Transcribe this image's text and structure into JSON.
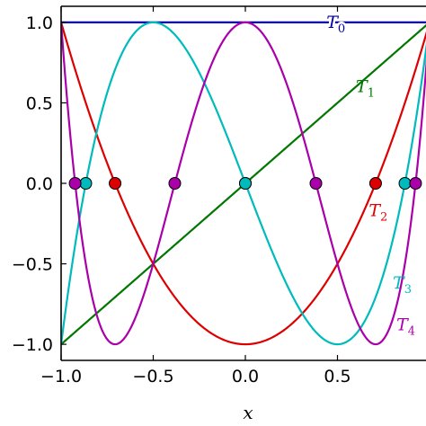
{
  "chart_data": {
    "type": "line",
    "xlabel": "x",
    "ylabel": "",
    "xlim": [
      -1.0,
      1.0
    ],
    "ylim": [
      -1.1,
      1.1
    ],
    "xticks": [
      {
        "value": -1.0,
        "label": "−1.0"
      },
      {
        "value": -0.5,
        "label": "−0.5"
      },
      {
        "value": 0.0,
        "label": "0.0"
      },
      {
        "value": 0.5,
        "label": "0.5"
      }
    ],
    "yticks": [
      {
        "value": 1.0,
        "label": "1.0"
      },
      {
        "value": 0.5,
        "label": "0.5"
      },
      {
        "value": 0.0,
        "label": "0.0"
      },
      {
        "value": -0.5,
        "label": "−0.5"
      },
      {
        "value": -1.0,
        "label": "−1.0"
      }
    ],
    "grid": false,
    "series": [
      {
        "name": "T",
        "sub": "0",
        "degree": 0,
        "color": "#0000aa",
        "label_at": {
          "x": 0.44,
          "y": 1.0
        },
        "roots": []
      },
      {
        "name": "T",
        "sub": "1",
        "degree": 1,
        "color": "#007700",
        "label_at": {
          "x": 0.6,
          "y": 0.6
        },
        "roots": [
          0.0
        ]
      },
      {
        "name": "T",
        "sub": "2",
        "degree": 2,
        "color": "#dd0000",
        "label_at": {
          "x": 0.67,
          "y": -0.17
        },
        "roots": [
          -0.707,
          0.707
        ]
      },
      {
        "name": "T",
        "sub": "3",
        "degree": 3,
        "color": "#00bbbb",
        "label_at": {
          "x": 0.8,
          "y": -0.62
        },
        "roots": [
          -0.866,
          0.0,
          0.866
        ]
      },
      {
        "name": "T",
        "sub": "4",
        "degree": 4,
        "color": "#aa00aa",
        "label_at": {
          "x": 0.82,
          "y": -0.88
        },
        "roots": [
          -0.924,
          -0.383,
          0.383,
          0.924
        ]
      }
    ]
  }
}
